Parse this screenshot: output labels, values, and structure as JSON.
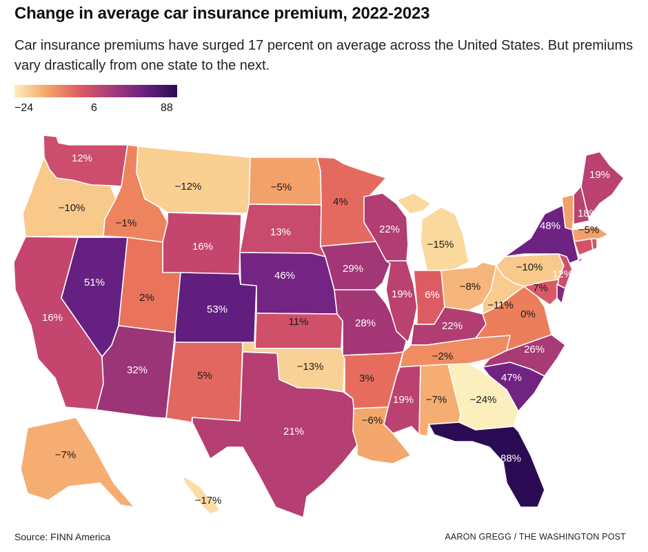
{
  "title": "Change in average car insurance premium, 2022-2023",
  "subtitle": "Car insurance premiums have surged 17 percent on average across the United States. But premiums vary drastically from one state to the next.",
  "legend": {
    "ticks": [
      "−24",
      "6",
      "88"
    ],
    "colors": [
      "#fcefbd",
      "#f6a467",
      "#dd5c63",
      "#a83a7a",
      "#6a2081",
      "#2b0b54"
    ]
  },
  "source": "Source: FINN America",
  "credit": "AARON GREGG / THE WASHINGTON POST",
  "chart_data": {
    "type": "choropleth",
    "metric": "Change in average car insurance premium, 2022-2023 (%)",
    "color_scale": {
      "min": -24,
      "mid": 6,
      "max": 88
    },
    "states": [
      {
        "id": "WA",
        "value": 12,
        "label": "12%",
        "color": "#cc4d6c"
      },
      {
        "id": "OR",
        "value": -10,
        "label": "−10%",
        "color": "#f8c98a"
      },
      {
        "id": "CA",
        "value": 16,
        "label": "16%",
        "color": "#c4466e"
      },
      {
        "id": "NV",
        "value": 51,
        "label": "51%",
        "color": "#662081"
      },
      {
        "id": "ID",
        "value": -1,
        "label": "−1%",
        "color": "#ee845e"
      },
      {
        "id": "MT",
        "value": -12,
        "label": "−12%",
        "color": "#f9cf92"
      },
      {
        "id": "WY",
        "value": 16,
        "label": "16%",
        "color": "#c4466e"
      },
      {
        "id": "UT",
        "value": 2,
        "label": "2%",
        "color": "#e9735b"
      },
      {
        "id": "AZ",
        "value": 32,
        "label": "32%",
        "color": "#9c3478"
      },
      {
        "id": "CO",
        "value": 53,
        "label": "53%",
        "color": "#611e7f"
      },
      {
        "id": "NM",
        "value": 5,
        "label": "5%",
        "color": "#e26760"
      },
      {
        "id": "ND",
        "value": -5,
        "label": "−5%",
        "color": "#f3a16b"
      },
      {
        "id": "SD",
        "value": 13,
        "label": "13%",
        "color": "#c84a6d"
      },
      {
        "id": "NE",
        "value": 46,
        "label": "46%",
        "color": "#742483"
      },
      {
        "id": "KS",
        "value": 11,
        "label": "11%",
        "color": "#d15069"
      },
      {
        "id": "OK",
        "value": -13,
        "label": "−13%",
        "color": "#f9d196"
      },
      {
        "id": "TX",
        "value": 21,
        "label": "21%",
        "color": "#b53e72"
      },
      {
        "id": "MN",
        "value": 4,
        "label": "4%",
        "color": "#e46a5f"
      },
      {
        "id": "IA",
        "value": 29,
        "label": "29%",
        "color": "#a23676"
      },
      {
        "id": "MO",
        "value": 28,
        "label": "28%",
        "color": "#a43776"
      },
      {
        "id": "AR",
        "value": 3,
        "label": "3%",
        "color": "#e66d5d"
      },
      {
        "id": "LA",
        "value": -6,
        "label": "−6%",
        "color": "#f4a76c"
      },
      {
        "id": "WI",
        "value": 22,
        "label": "22%",
        "color": "#b23d72"
      },
      {
        "id": "IL",
        "value": 19,
        "label": "19%",
        "color": "#ba4170"
      },
      {
        "id": "MI",
        "value": -15,
        "label": "−15%",
        "color": "#fad89e"
      },
      {
        "id": "IN",
        "value": 6,
        "label": "6%",
        "color": "#dd5c63"
      },
      {
        "id": "OH",
        "value": -8,
        "label": "−8%",
        "color": "#f6b57a"
      },
      {
        "id": "KY",
        "value": 22,
        "label": "22%",
        "color": "#b23d72"
      },
      {
        "id": "TN",
        "value": -2,
        "label": "−2%",
        "color": "#ef8c62"
      },
      {
        "id": "MS",
        "value": 19,
        "label": "19%",
        "color": "#ba4170"
      },
      {
        "id": "AL",
        "value": -7,
        "label": "−7%",
        "color": "#f5ad72"
      },
      {
        "id": "GA",
        "value": -24,
        "label": "−24%",
        "color": "#fcefbd"
      },
      {
        "id": "FL",
        "value": 88,
        "label": "88%",
        "color": "#2b0b54"
      },
      {
        "id": "SC",
        "value": 47,
        "label": "47%",
        "color": "#712382"
      },
      {
        "id": "NC",
        "value": 26,
        "label": "26%",
        "color": "#a83a75"
      },
      {
        "id": "VA",
        "value": 0,
        "label": "0%",
        "color": "#ec7e5c"
      },
      {
        "id": "WV",
        "value": -11,
        "label": "−11%",
        "color": "#f8cc8e"
      },
      {
        "id": "PA",
        "value": -10,
        "label": "−10%",
        "color": "#f8c98a"
      },
      {
        "id": "NY",
        "value": 48,
        "label": "48%",
        "color": "#6e2282"
      },
      {
        "id": "NJ",
        "value": 12,
        "label": "12%",
        "color": "#cc4d6c"
      },
      {
        "id": "MD",
        "value": 7,
        "label": "7%",
        "color": "#da5966"
      },
      {
        "id": "DE",
        "value": 40,
        "label": "",
        "color": "#84297f"
      },
      {
        "id": "CT",
        "value": 10,
        "label": "",
        "color": "#d45267"
      },
      {
        "id": "RI",
        "value": 10,
        "label": "",
        "color": "#d45267"
      },
      {
        "id": "MA",
        "value": -5,
        "label": "−5%",
        "color": "#f3a16b"
      },
      {
        "id": "VT",
        "value": -5,
        "label": "",
        "color": "#f3a16b"
      },
      {
        "id": "NH",
        "value": 18,
        "label": "18%",
        "color": "#bc426f"
      },
      {
        "id": "ME",
        "value": 19,
        "label": "19%",
        "color": "#ba4170"
      },
      {
        "id": "AK",
        "value": -7,
        "label": "−7%",
        "color": "#f5ad72"
      },
      {
        "id": "HI",
        "value": -17,
        "label": "−17%",
        "color": "#fbdca4"
      }
    ]
  }
}
